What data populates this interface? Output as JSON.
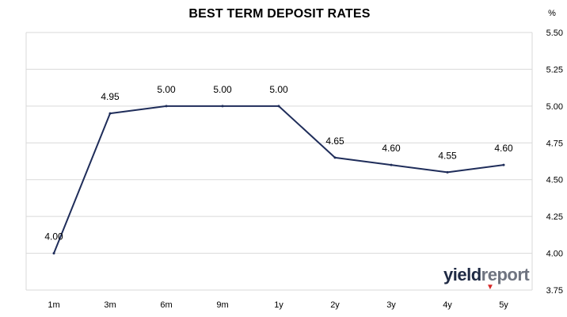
{
  "chart_data": {
    "type": "line",
    "title": "BEST TERM  DEPOSIT  RATES",
    "unit": "%",
    "categories": [
      "1m",
      "3m",
      "6m",
      "9m",
      "1y",
      "2y",
      "3y",
      "4y",
      "5y"
    ],
    "series": [
      {
        "values": [
          4.0,
          4.95,
          5.0,
          5.0,
          5.0,
          4.65,
          4.6,
          4.55,
          4.6
        ]
      }
    ],
    "data_labels": [
      "4.00",
      "4.95",
      "5.00",
      "5.00",
      "5.00",
      "4.65",
      "4.60",
      "4.55",
      "4.60"
    ],
    "ylim": [
      3.75,
      5.5
    ],
    "yticks": [
      "5.50",
      "5.25",
      "5.00",
      "4.75",
      "4.50",
      "4.25",
      "4.00",
      "3.75"
    ],
    "y_axis_side": "right",
    "grid": true,
    "line_color": "#1f2d5a",
    "grid_color": "#d9d9d9"
  },
  "logo": {
    "part1": "yield",
    "part2": "report",
    "mark": "▼",
    "brand_color": "#1f2a44",
    "accent_color": "#d62828"
  }
}
